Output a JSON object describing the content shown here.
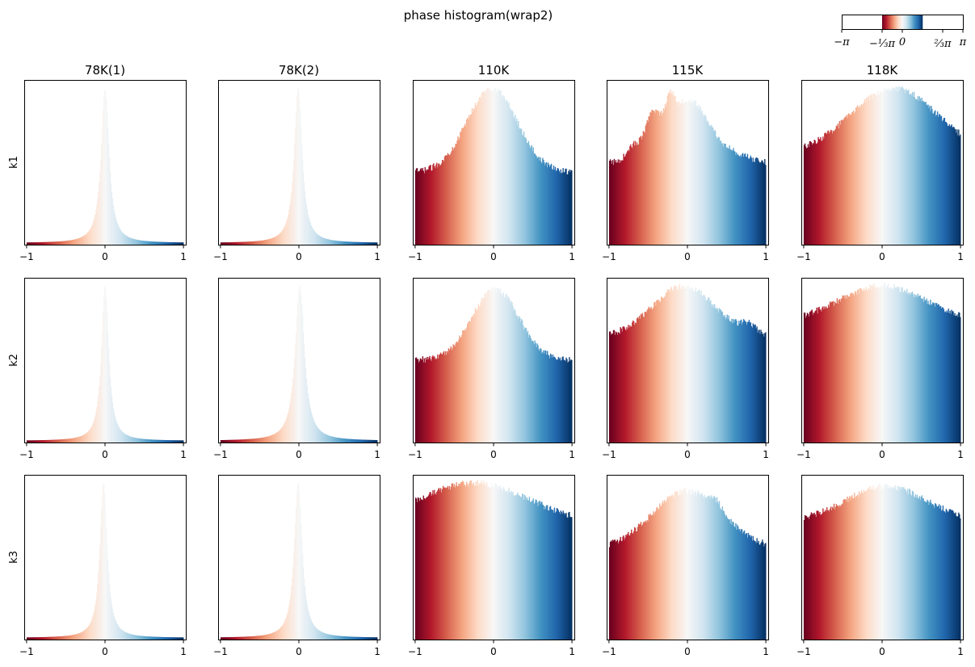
{
  "chart_data": {
    "type": "bar",
    "title": "phase histogram(wrap2)",
    "columns": [
      "78K(1)",
      "78K(2)",
      "110K",
      "115K",
      "118K"
    ],
    "rows": [
      "k1",
      "k2",
      "k3"
    ],
    "xlim": [
      -1.03,
      1.03
    ],
    "x_ticks": [
      -1,
      0,
      1
    ],
    "x_tick_labels": [
      "−1",
      "0",
      "1"
    ],
    "y_ticks_shown": false,
    "colormap": "RdBu",
    "bin_count": 200,
    "panels": [
      {
        "row": "k1",
        "column": "78K(1)",
        "shape": "peak",
        "center": 0.0,
        "width": 0.06,
        "baseline": 0.01,
        "peak": 0.95,
        "bumps": []
      },
      {
        "row": "k1",
        "column": "78K(2)",
        "shape": "peak",
        "center": -0.01,
        "width": 0.06,
        "baseline": 0.01,
        "peak": 0.95,
        "bumps": []
      },
      {
        "row": "k1",
        "column": "110K",
        "shape": "broad",
        "baseline": 0.44,
        "peak": 0.95,
        "center": -0.02,
        "width": 0.32,
        "bumps": []
      },
      {
        "row": "k1",
        "column": "115K",
        "shape": "broad",
        "baseline": 0.5,
        "peak": 0.88,
        "center": 0.0,
        "width": 0.28,
        "bumps": [
          {
            "x": -0.7,
            "a": 0.08,
            "w": 0.08
          },
          {
            "x": -0.45,
            "a": 0.2,
            "w": 0.1
          },
          {
            "x": -0.22,
            "a": 0.14,
            "w": 0.05
          },
          {
            "x": 0.65,
            "a": 0.03,
            "w": 0.15
          }
        ]
      },
      {
        "row": "k1",
        "column": "118K",
        "shape": "broad",
        "baseline": 0.55,
        "peak": 0.95,
        "center": 0.15,
        "width": 0.55,
        "bumps": []
      },
      {
        "row": "k2",
        "column": "78K(1)",
        "shape": "peak",
        "center": 0.0,
        "width": 0.055,
        "baseline": 0.01,
        "peak": 0.95,
        "bumps": []
      },
      {
        "row": "k2",
        "column": "78K(2)",
        "shape": "peak",
        "center": 0.01,
        "width": 0.07,
        "baseline": 0.01,
        "peak": 0.95,
        "bumps": []
      },
      {
        "row": "k2",
        "column": "110K",
        "shape": "broad",
        "baseline": 0.5,
        "peak": 0.93,
        "center": 0.02,
        "width": 0.3,
        "bumps": []
      },
      {
        "row": "k2",
        "column": "115K",
        "shape": "broad",
        "baseline": 0.64,
        "peak": 0.95,
        "center": -0.05,
        "width": 0.4,
        "bumps": [
          {
            "x": 0.78,
            "a": 0.05,
            "w": 0.1
          }
        ]
      },
      {
        "row": "k2",
        "column": "118K",
        "shape": "broad",
        "baseline": 0.73,
        "peak": 0.95,
        "center": 0.0,
        "width": 0.55,
        "bumps": []
      },
      {
        "row": "k3",
        "column": "78K(1)",
        "shape": "peak",
        "center": -0.02,
        "width": 0.055,
        "baseline": 0.01,
        "peak": 0.95,
        "bumps": []
      },
      {
        "row": "k3",
        "column": "78K(2)",
        "shape": "peak",
        "center": -0.01,
        "width": 0.06,
        "baseline": 0.01,
        "peak": 0.95,
        "bumps": []
      },
      {
        "row": "k3",
        "column": "110K",
        "shape": "broad",
        "baseline": 0.7,
        "peak": 0.95,
        "center": -0.25,
        "width": 0.7,
        "bumps": []
      },
      {
        "row": "k3",
        "column": "115K",
        "shape": "broad",
        "baseline": 0.55,
        "peak": 0.9,
        "center": 0.0,
        "width": 0.45,
        "bumps": [
          {
            "x": 0.35,
            "a": 0.05,
            "w": 0.08
          }
        ]
      },
      {
        "row": "k3",
        "column": "118K",
        "shape": "broad",
        "baseline": 0.72,
        "peak": 0.93,
        "center": 0.05,
        "width": 0.5,
        "bumps": []
      }
    ],
    "colorbar": {
      "colormap": "RdBu",
      "range_labels": [
        "−π",
        "−⅓π",
        "0",
        "⅔π",
        "π"
      ],
      "ticks": [
        -1.0,
        -0.3333,
        0.0,
        0.6667,
        1.0
      ],
      "colored_span": [
        -0.3333,
        0.3333
      ]
    }
  }
}
